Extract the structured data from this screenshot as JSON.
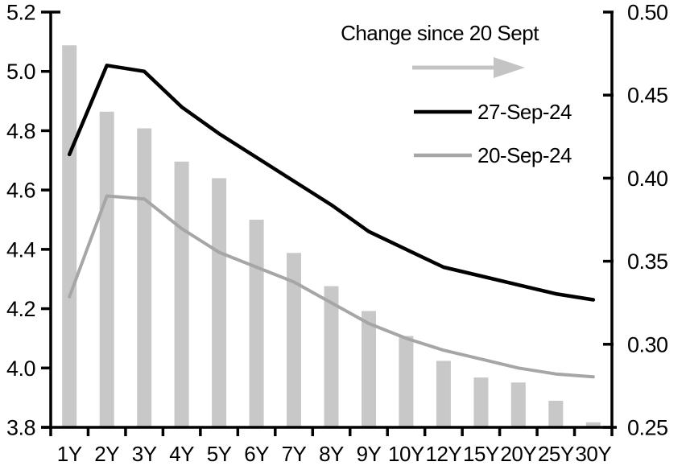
{
  "chart_data": {
    "type": "bar+line",
    "categories": [
      "1Y",
      "2Y",
      "3Y",
      "4Y",
      "5Y",
      "6Y",
      "7Y",
      "8Y",
      "9Y",
      "10Y",
      "12Y",
      "15Y",
      "20Y",
      "25Y",
      "30Y"
    ],
    "bar_series": {
      "name": "Change since 20 Sept",
      "axis": "right",
      "values": [
        0.48,
        0.44,
        0.43,
        0.41,
        0.4,
        0.375,
        0.355,
        0.335,
        0.32,
        0.305,
        0.29,
        0.28,
        0.277,
        0.266,
        0.253
      ]
    },
    "line_series": [
      {
        "name": "27-Sep-24",
        "axis": "left",
        "color": "#000000",
        "values": [
          4.72,
          5.02,
          5.0,
          4.88,
          4.79,
          4.71,
          4.63,
          4.55,
          4.46,
          4.4,
          4.34,
          4.31,
          4.28,
          4.25,
          4.23
        ]
      },
      {
        "name": "20-Sep-24",
        "axis": "left",
        "color": "#a6a6a6",
        "values": [
          4.24,
          4.58,
          4.57,
          4.47,
          4.39,
          4.34,
          4.29,
          4.22,
          4.15,
          4.1,
          4.06,
          4.03,
          4.0,
          3.98,
          3.97
        ]
      }
    ],
    "left_axis": {
      "min": 3.8,
      "max": 5.2,
      "tick_labels": [
        "5.2",
        "5.0",
        "4.8",
        "4.6",
        "4.4",
        "4.2",
        "4.0",
        "3.8"
      ]
    },
    "right_axis": {
      "min": 0.25,
      "max": 0.5,
      "tick_labels": [
        "0.50",
        "0.45",
        "0.40",
        "0.35",
        "0.30",
        "0.25"
      ]
    },
    "legend": {
      "title": "Change since 20 Sept",
      "arrow_color": "#c4c4c4",
      "entries": [
        "27-Sep-24",
        "20-Sep-24"
      ]
    },
    "bar_color": "#c8c8c8",
    "layout": {
      "grid": false,
      "legend_position": "top-right-inside"
    }
  }
}
